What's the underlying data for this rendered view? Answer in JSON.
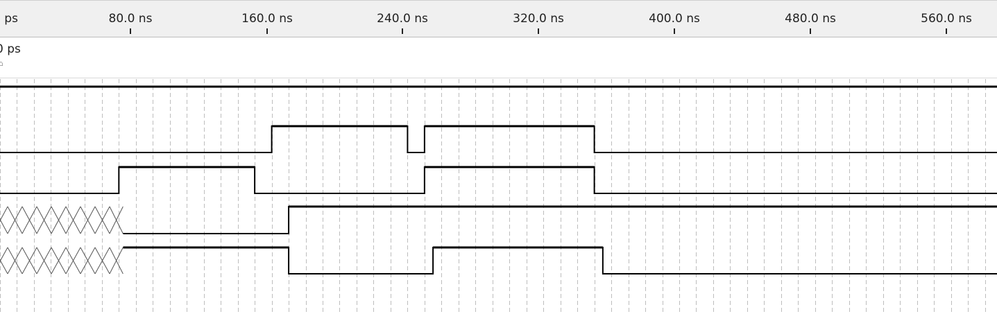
{
  "timeline": {
    "tick_labels": [
      "0 ps",
      "80.0 ns",
      "160.0 ns",
      "240.0 ns",
      "320.0 ns",
      "400.0 ns",
      "480.0 ns",
      "560.0 ns"
    ]
  },
  "cursor": {
    "label": "0 ps"
  },
  "colors": {
    "waveform": "#000000",
    "grid": "#bdbdbd",
    "ruler_bg": "#f0f0f0"
  },
  "signals": [
    {
      "value_kind": "constant-high",
      "transitions_ns": []
    },
    {
      "value_kind": "binary",
      "transitions_ns": [
        160,
        240,
        250,
        350
      ]
    },
    {
      "value_kind": "binary",
      "transitions_ns": [
        70,
        150,
        250,
        350
      ]
    },
    {
      "value_kind": "unknown-then-binary",
      "unknown_until_ns": 70,
      "transitions_ns": [
        170
      ]
    },
    {
      "value_kind": "unknown-then-binary",
      "unknown_until_ns": 70,
      "transitions_ns": [
        170,
        255,
        355
      ]
    }
  ]
}
